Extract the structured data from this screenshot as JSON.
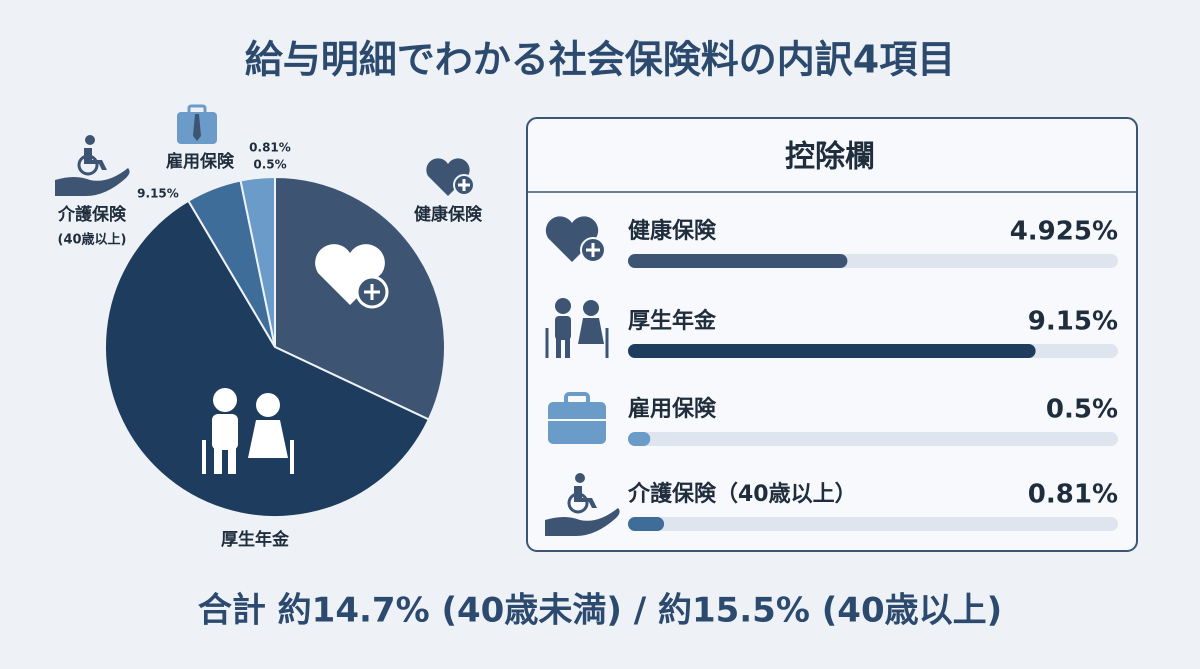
{
  "title": "給与明細でわかる社会保険料の内訳4項目",
  "footer": "合計 約14.7% (40歳未満) / 約15.5% (40歳以上)",
  "chart_data": [
    {
      "type": "pie",
      "labels": [
        [
          "健康保険"
        ],
        [
          "厚生年金"
        ],
        [
          "介護保険",
          "(40歳以上)"
        ],
        [
          "雇用保険"
        ]
      ],
      "values": [
        4.925,
        9.15,
        0.81,
        0.5
      ],
      "value_labels": [
        null,
        "9.15%",
        "0.81%",
        "0.5%"
      ],
      "colors": [
        "#3d5573",
        "#1e3c5e",
        "#3f6d9a",
        "#6a9bc9"
      ]
    },
    {
      "type": "progress",
      "title": "控除欄",
      "categories": [
        "健康保険",
        "厚生年金",
        "雇用保険",
        "介護保険（40歳以上）"
      ],
      "values": [
        4.925,
        9.15,
        0.5,
        0.81
      ],
      "value_labels": [
        "4.925%",
        "9.15%",
        "0.5%",
        "0.81%"
      ],
      "colors": [
        "#3d5573",
        "#1e3c5e",
        "#6a9bc9",
        "#3f6d9a"
      ],
      "xlim": [
        0,
        11
      ]
    }
  ]
}
